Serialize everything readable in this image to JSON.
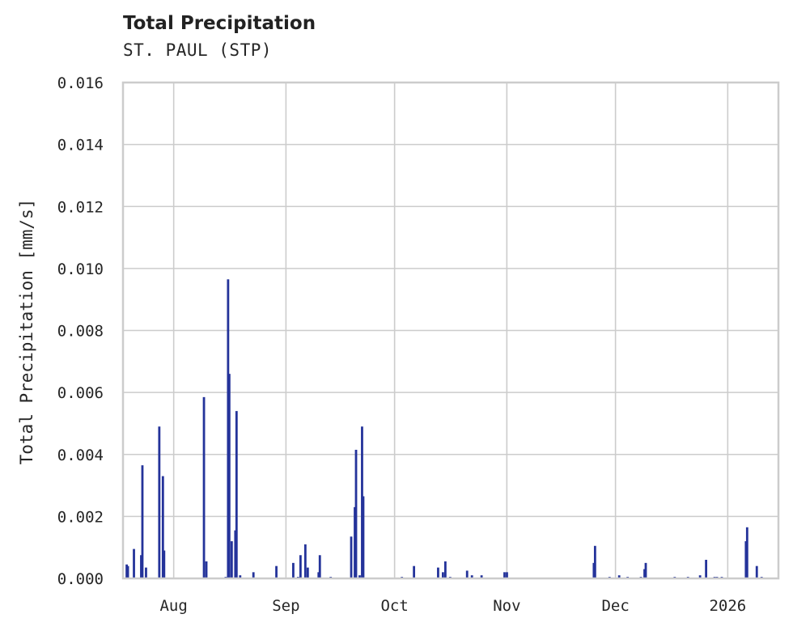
{
  "header": {
    "title": "Total Precipitation",
    "subtitle": "ST. PAUL (STP)"
  },
  "chart_data": {
    "type": "bar",
    "title": "Total Precipitation",
    "subtitle": "ST. PAUL (STP)",
    "xlabel": "",
    "ylabel": "Total Precipitation [mm/s]",
    "ylim": [
      0,
      0.016
    ],
    "xlim": [
      "2025-07-18",
      "2026-01-15"
    ],
    "grid": true,
    "legend": null,
    "bar_color": "#24339a",
    "y_ticks": [
      "0.000",
      "0.002",
      "0.004",
      "0.006",
      "0.008",
      "0.010",
      "0.012",
      "0.014",
      "0.016"
    ],
    "x_ticks": [
      {
        "label": "Aug",
        "date": "2025-08-01"
      },
      {
        "label": "Sep",
        "date": "2025-09-01"
      },
      {
        "label": "Oct",
        "date": "2025-10-01"
      },
      {
        "label": "Nov",
        "date": "2025-11-01"
      },
      {
        "label": "Dec",
        "date": "2025-12-01"
      },
      {
        "label": "2026",
        "date": "2026-01-01"
      }
    ],
    "points": [
      {
        "date": "2025-07-19",
        "value": 0.00045
      },
      {
        "date": "2025-07-19",
        "value": 0.0004
      },
      {
        "date": "2025-07-21",
        "value": 0.00095
      },
      {
        "date": "2025-07-23",
        "value": 0.00365
      },
      {
        "date": "2025-07-23",
        "value": 0.00075
      },
      {
        "date": "2025-07-24",
        "value": 0.00035
      },
      {
        "date": "2025-07-28",
        "value": 0.0049
      },
      {
        "date": "2025-07-29",
        "value": 0.0009
      },
      {
        "date": "2025-07-29",
        "value": 0.0033
      },
      {
        "date": "2025-08-09",
        "value": 0.00585
      },
      {
        "date": "2025-08-10",
        "value": 0.00055
      },
      {
        "date": "2025-08-15",
        "value": 5e-05
      },
      {
        "date": "2025-08-16",
        "value": 0.00965
      },
      {
        "date": "2025-08-16",
        "value": 0.0066
      },
      {
        "date": "2025-08-17",
        "value": 0.0012
      },
      {
        "date": "2025-08-18",
        "value": 0.0054
      },
      {
        "date": "2025-08-18",
        "value": 0.00155
      },
      {
        "date": "2025-08-19",
        "value": 0.0001
      },
      {
        "date": "2025-08-23",
        "value": 0.0002
      },
      {
        "date": "2025-08-29",
        "value": 0.0004
      },
      {
        "date": "2025-09-03",
        "value": 0.0005
      },
      {
        "date": "2025-09-04",
        "value": 5e-05
      },
      {
        "date": "2025-09-05",
        "value": 0.00075
      },
      {
        "date": "2025-09-06",
        "value": 0.0011
      },
      {
        "date": "2025-09-07",
        "value": 0.00035
      },
      {
        "date": "2025-09-10",
        "value": 0.00075
      },
      {
        "date": "2025-09-10",
        "value": 0.0002
      },
      {
        "date": "2025-09-13",
        "value": 5e-05
      },
      {
        "date": "2025-09-19",
        "value": 0.00135
      },
      {
        "date": "2025-09-20",
        "value": 0.00415
      },
      {
        "date": "2025-09-20",
        "value": 0.0023
      },
      {
        "date": "2025-09-21",
        "value": 0.0001
      },
      {
        "date": "2025-09-22",
        "value": 0.0049
      },
      {
        "date": "2025-09-22",
        "value": 0.00265
      },
      {
        "date": "2025-10-03",
        "value": 5e-05
      },
      {
        "date": "2025-10-06",
        "value": 0.0004
      },
      {
        "date": "2025-10-13",
        "value": 0.00035
      },
      {
        "date": "2025-10-14",
        "value": 0.0002
      },
      {
        "date": "2025-10-15",
        "value": 0.00055
      },
      {
        "date": "2025-10-16",
        "value": 5e-05
      },
      {
        "date": "2025-10-21",
        "value": 0.00025
      },
      {
        "date": "2025-10-22",
        "value": 0.0001
      },
      {
        "date": "2025-10-25",
        "value": 0.0001
      },
      {
        "date": "2025-10-31",
        "value": 0.0002
      },
      {
        "date": "2025-11-01",
        "value": 0.0002
      },
      {
        "date": "2025-11-25",
        "value": 0.00105
      },
      {
        "date": "2025-11-25",
        "value": 0.0005
      },
      {
        "date": "2025-11-29",
        "value": 5e-05
      },
      {
        "date": "2025-12-02",
        "value": 0.0001
      },
      {
        "date": "2025-12-04",
        "value": 5e-05
      },
      {
        "date": "2025-12-08",
        "value": 5e-05
      },
      {
        "date": "2025-12-09",
        "value": 0.0005
      },
      {
        "date": "2025-12-09",
        "value": 0.0003
      },
      {
        "date": "2025-12-17",
        "value": 5e-05
      },
      {
        "date": "2025-12-21",
        "value": 5e-05
      },
      {
        "date": "2025-12-24",
        "value": 0.0001
      },
      {
        "date": "2025-12-26",
        "value": 0.0006
      },
      {
        "date": "2025-12-28",
        "value": 5e-05
      },
      {
        "date": "2025-12-29",
        "value": 5e-05
      },
      {
        "date": "2025-12-30",
        "value": 5e-05
      },
      {
        "date": "2026-01-06",
        "value": 0.0012
      },
      {
        "date": "2026-01-06",
        "value": 0.00165
      },
      {
        "date": "2026-01-09",
        "value": 0.0004
      },
      {
        "date": "2026-01-10",
        "value": 5e-05
      }
    ]
  }
}
